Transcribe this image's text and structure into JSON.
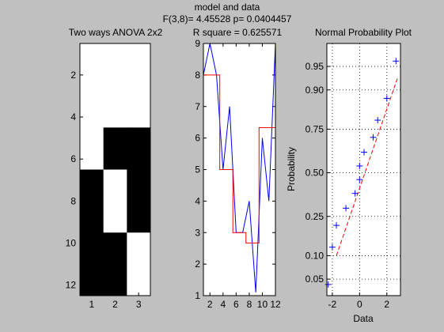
{
  "figure": {
    "suptitle": "model and data",
    "stats_line": "F(3,8)= 4.45528 p= 0.0404457",
    "background": "#c0c0c0"
  },
  "chart_data": [
    {
      "type": "heatmap",
      "title": "Two ways ANOVA 2x2",
      "xticks": [
        "1",
        "2",
        "3"
      ],
      "yticks": [
        "2",
        "4",
        "6",
        "8",
        "10",
        "12"
      ],
      "rows": 12,
      "cols": 3,
      "colors": {
        "one": "#ffffff",
        "zero": "#000000"
      },
      "matrix": [
        [
          1,
          1,
          1
        ],
        [
          1,
          1,
          1
        ],
        [
          1,
          1,
          1
        ],
        [
          1,
          1,
          1
        ],
        [
          1,
          0,
          0
        ],
        [
          1,
          0,
          0
        ],
        [
          0,
          1,
          0
        ],
        [
          0,
          1,
          0
        ],
        [
          0,
          1,
          0
        ],
        [
          0,
          0,
          1
        ],
        [
          0,
          0,
          1
        ],
        [
          0,
          0,
          1
        ]
      ]
    },
    {
      "type": "line",
      "title": "R square = 0.625571",
      "x": [
        1,
        2,
        3,
        4,
        5,
        6,
        7,
        8,
        9,
        10,
        11,
        12
      ],
      "xlim": [
        1,
        12
      ],
      "ylim": [
        1,
        9
      ],
      "xticks": [
        "2",
        "4",
        "6",
        "8",
        "10",
        "12"
      ],
      "yticks": [
        "1",
        "2",
        "3",
        "4",
        "5",
        "6",
        "7",
        "8",
        "9"
      ],
      "series": [
        {
          "color": "#0000ff",
          "values": [
            8,
            9,
            8,
            5,
            7,
            3,
            3,
            4,
            1.1,
            6,
            4,
            9
          ]
        },
        {
          "color": "#ff0000",
          "values": [
            8,
            8,
            8,
            5,
            5,
            3,
            3,
            2.67,
            2.67,
            6.33,
            6.33,
            6.33
          ],
          "step": true
        }
      ]
    },
    {
      "type": "scatter",
      "title": "Normal Probability Plot",
      "xlabel": "Data",
      "ylabel": "Probability",
      "xlim": [
        -2.4,
        3.0
      ],
      "xticks": [
        -2,
        0,
        2
      ],
      "xtick_labels": [
        "-2",
        "0",
        "2"
      ],
      "yticks": [
        0.05,
        0.1,
        0.25,
        0.5,
        0.75,
        0.9,
        0.95
      ],
      "ytick_labels": [
        "0.05",
        "0.10",
        "0.25",
        "0.50",
        "0.75",
        "0.90",
        "0.95"
      ],
      "grid": true,
      "marker_color": "#0000ff",
      "fit_line": {
        "color": "#ff0000",
        "from": [
          -1.7,
          0.1
        ],
        "to": [
          2.8,
          0.93
        ]
      },
      "points": [
        {
          "x": -2.3,
          "p": 0.042
        },
        {
          "x": -2.0,
          "p": 0.125
        },
        {
          "x": -1.7,
          "p": 0.208
        },
        {
          "x": -1.0,
          "p": 0.292
        },
        {
          "x": -0.33,
          "p": 0.375
        },
        {
          "x": 0.0,
          "p": 0.458
        },
        {
          "x": 0.0,
          "p": 0.542
        },
        {
          "x": 0.33,
          "p": 0.625
        },
        {
          "x": 1.0,
          "p": 0.708
        },
        {
          "x": 1.33,
          "p": 0.792
        },
        {
          "x": 2.0,
          "p": 0.875
        },
        {
          "x": 2.67,
          "p": 0.958
        }
      ]
    }
  ]
}
